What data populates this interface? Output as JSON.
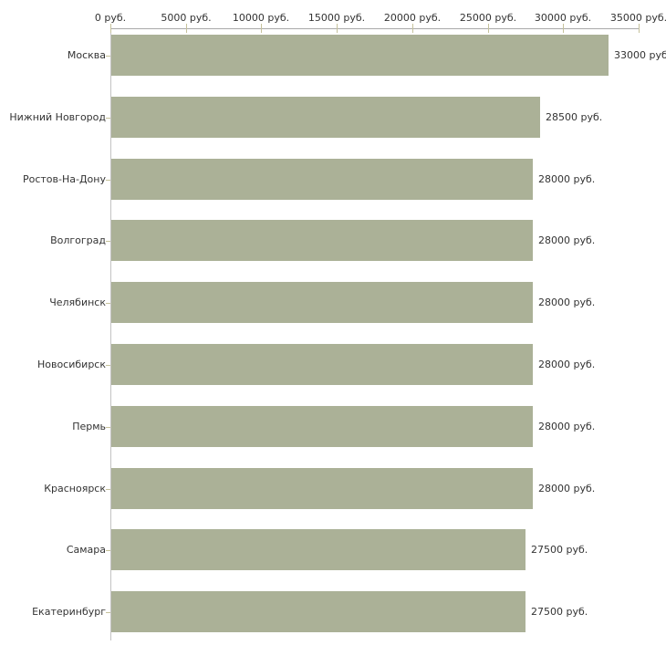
{
  "chart_data": {
    "type": "bar",
    "orientation": "horizontal",
    "title": "",
    "xlabel": "",
    "ylabel": "",
    "currency_suffix": "руб.",
    "categories": [
      "Москва",
      "Нижний Новгород",
      "Ростов-На-Дону",
      "Волгоград",
      "Челябинск",
      "Новосибирск",
      "Пермь",
      "Красноярск",
      "Самара",
      "Екатеринбург"
    ],
    "values": [
      33000,
      28500,
      28000,
      28000,
      28000,
      28000,
      28000,
      28000,
      27500,
      27500
    ],
    "value_labels": [
      "33000 руб",
      "28500 руб.",
      "28000 руб.",
      "28000 руб.",
      "28000 руб.",
      "28000 руб.",
      "28000 руб.",
      "28000 руб.",
      "27500 руб.",
      "27500 руб."
    ],
    "x_axis": {
      "position": "top",
      "min": 0,
      "max": 35000,
      "tick_values": [
        0,
        5000,
        10000,
        15000,
        20000,
        25000,
        30000,
        35000
      ],
      "tick_labels": [
        "0 руб.",
        "5000 руб.",
        "10000 руб.",
        "15000 руб.",
        "20000 руб.",
        "25000 руб.",
        "30000 руб.",
        "35000 руб."
      ]
    },
    "grid": false,
    "legend": false,
    "colors": {
      "bar": "#abb197",
      "axis_line": "#a9a9a9",
      "y_axis_line": "#c3c3c3",
      "tick_mark": "#c6c29b",
      "text": "#333333",
      "background": "#ffffff"
    }
  }
}
